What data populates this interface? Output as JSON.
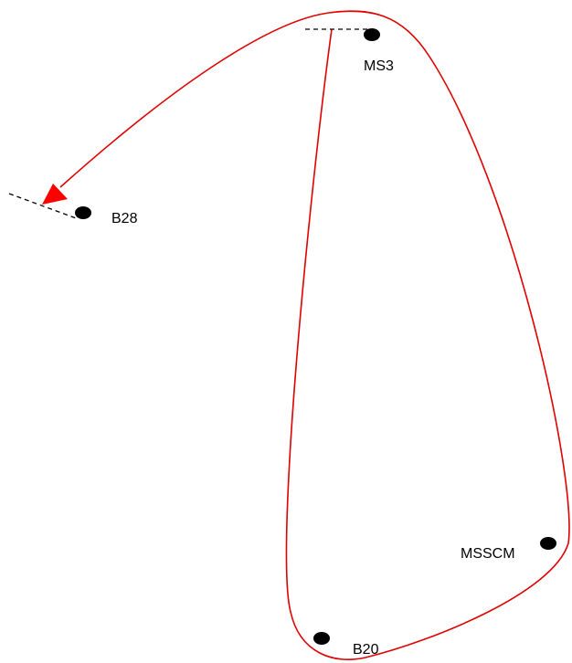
{
  "nodes": [
    {
      "label": "MS3"
    },
    {
      "label": "B28"
    },
    {
      "label": "MSSCM"
    },
    {
      "label": "B20"
    }
  ]
}
